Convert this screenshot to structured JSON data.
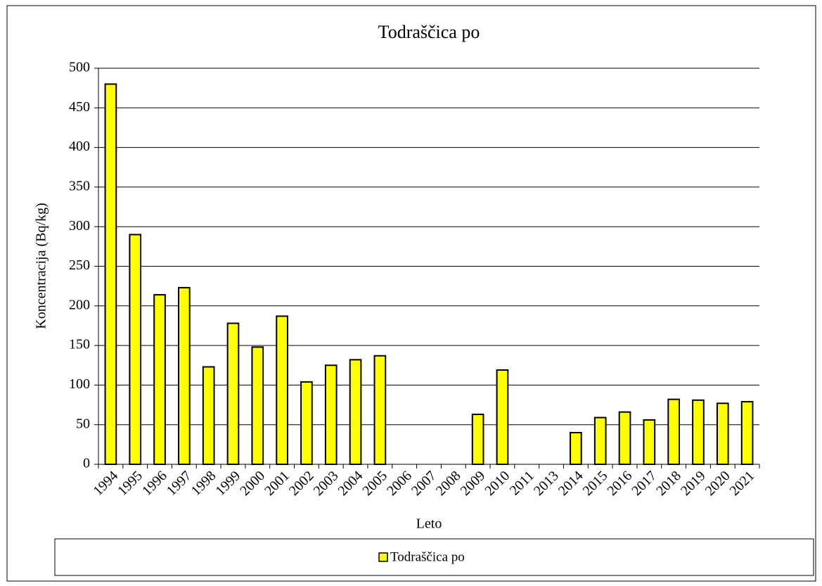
{
  "chart_data": {
    "type": "bar",
    "title": "Todraščica po",
    "x_label": "Leto",
    "y_label": "Koncentracija (Bq/kg)",
    "categories": [
      "1994",
      "1995",
      "1996",
      "1997",
      "1998",
      "1999",
      "2000",
      "2001",
      "2002",
      "2003",
      "2004",
      "2005",
      "2006",
      "2007",
      "2008",
      "2009",
      "2010",
      "2011",
      "2013",
      "2014",
      "2015",
      "2016",
      "2017",
      "2018",
      "2019",
      "2020",
      "2021"
    ],
    "series": [
      {
        "name": "Todraščica po",
        "color": "#ffff00",
        "values": [
          480,
          290,
          214,
          223,
          123,
          178,
          148,
          187,
          104,
          125,
          132,
          137,
          null,
          null,
          null,
          63,
          119,
          null,
          null,
          40,
          59,
          66,
          56,
          82,
          81,
          77,
          79
        ]
      }
    ],
    "ylim": [
      0,
      500
    ],
    "yticks": [
      0,
      50,
      100,
      150,
      200,
      250,
      300,
      350,
      400,
      450,
      500
    ],
    "grid": true,
    "legend": "bottom"
  }
}
